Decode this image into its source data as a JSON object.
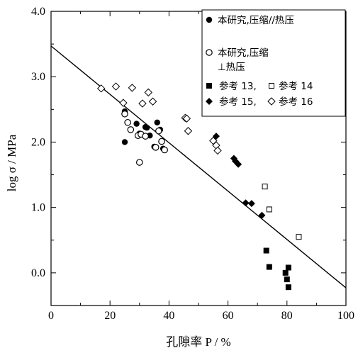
{
  "chart_data": {
    "type": "scatter",
    "title": "",
    "xlabel": "孔隙率 P / %",
    "ylabel": "log σ / MPa",
    "xlim": [
      0,
      100
    ],
    "ylim": [
      -0.5,
      4.0
    ],
    "x_ticks": [
      "0",
      "20",
      "40",
      "60",
      "80",
      "100"
    ],
    "y_ticks": [
      "0.0",
      "1.0",
      "2.0",
      "3.0",
      "4.0"
    ],
    "legend_position": "top-right",
    "legend_lines": [
      "本研究,压缩//热压",
      "本研究,压缩",
      "⊥热压",
      "参考 13,",
      "参考 14",
      "参考 15,",
      "参考 16"
    ],
    "series": [
      {
        "name": "本研究,压缩//热压",
        "marker": "circle-filled",
        "points": [
          [
            25,
            2.47
          ],
          [
            25,
            2.0
          ],
          [
            29,
            2.28
          ],
          [
            30,
            2.13
          ],
          [
            32,
            2.23
          ],
          [
            32.5,
            2.22
          ],
          [
            33.5,
            2.1
          ],
          [
            35,
            1.93
          ],
          [
            36,
            2.3
          ],
          [
            37,
            2.19
          ],
          [
            38,
            1.9
          ]
        ]
      },
      {
        "name": "本研究,压缩 ⊥热压",
        "marker": "circle-open",
        "points": [
          [
            25,
            2.43
          ],
          [
            26,
            2.3
          ],
          [
            27,
            2.19
          ],
          [
            29.5,
            2.1
          ],
          [
            30.5,
            2.12
          ],
          [
            32,
            2.09
          ],
          [
            35.5,
            1.92
          ],
          [
            36.5,
            2.17
          ],
          [
            37.5,
            2.01
          ],
          [
            38.5,
            1.88
          ],
          [
            30,
            1.69
          ]
        ]
      },
      {
        "name": "参考 13",
        "marker": "square-filled",
        "points": [
          [
            73,
            0.34
          ],
          [
            74,
            0.09
          ],
          [
            79.5,
            0.0
          ],
          [
            80,
            -0.1
          ],
          [
            80.5,
            0.08
          ],
          [
            80.5,
            -0.22
          ]
        ]
      },
      {
        "name": "参考 14",
        "marker": "square-open",
        "points": [
          [
            72.5,
            1.32
          ],
          [
            74,
            0.97
          ],
          [
            84,
            0.55
          ]
        ]
      },
      {
        "name": "参考 15",
        "marker": "diamond-filled",
        "points": [
          [
            56,
            2.09
          ],
          [
            62,
            1.75
          ],
          [
            62.5,
            1.71
          ],
          [
            63.5,
            1.66
          ],
          [
            66,
            1.07
          ],
          [
            68,
            1.06
          ],
          [
            71.5,
            0.88
          ]
        ]
      },
      {
        "name": "参考 16",
        "marker": "diamond-open",
        "points": [
          [
            17,
            2.82
          ],
          [
            22,
            2.85
          ],
          [
            24.5,
            2.6
          ],
          [
            27.5,
            2.83
          ],
          [
            31,
            2.59
          ],
          [
            33,
            2.76
          ],
          [
            34.5,
            2.62
          ],
          [
            45.5,
            2.37
          ],
          [
            46,
            2.36
          ],
          [
            46.5,
            2.17
          ],
          [
            55,
            2.02
          ],
          [
            56,
            1.95
          ],
          [
            56.5,
            1.87
          ]
        ]
      }
    ],
    "fit_line": {
      "x": [
        0,
        100
      ],
      "y": [
        3.47,
        -0.23
      ]
    }
  }
}
